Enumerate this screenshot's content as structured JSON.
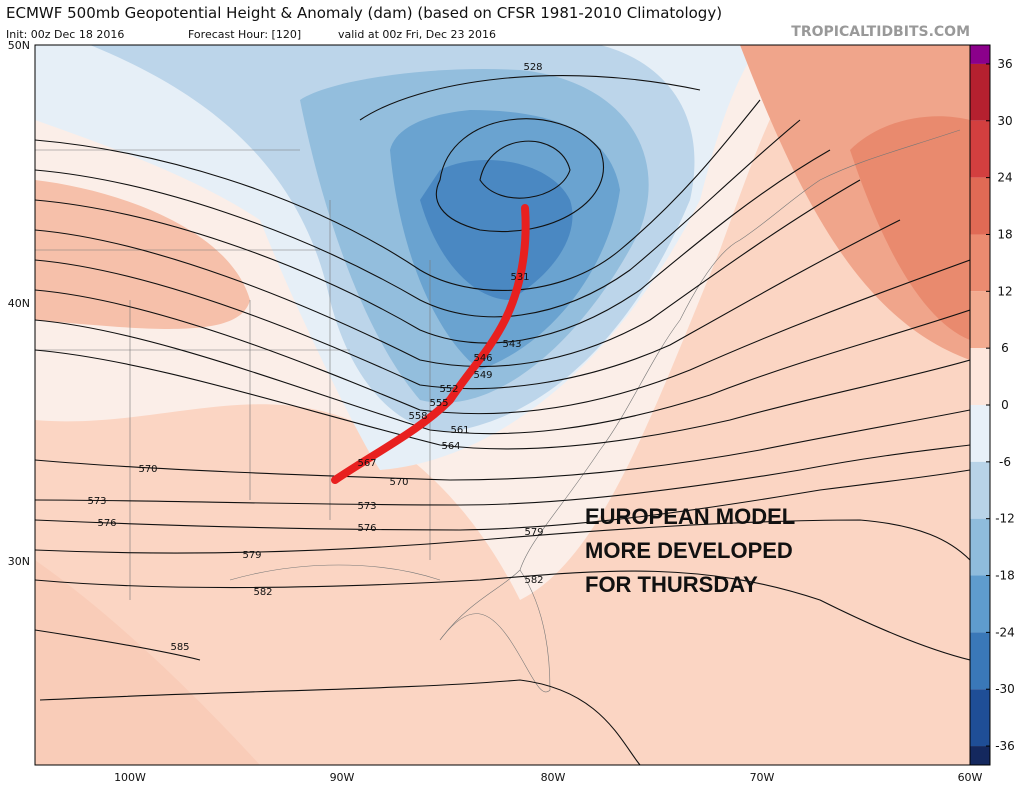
{
  "header": {
    "title": "ECMWF 500mb Geopotential Height & Anomaly (dam) (based on CFSR 1981-2010 Climatology)",
    "init": "Init: 00z Dec 18 2016",
    "forecast_hour": "Forecast Hour: [120]",
    "valid": "valid at 00z Fri, Dec 23 2016",
    "source": "TROPICALTIDBITS.COM"
  },
  "map": {
    "lat_labels": [
      "50N",
      "40N",
      "30N"
    ],
    "lon_labels": [
      "100W",
      "90W",
      "80W",
      "70W",
      "60W"
    ],
    "contour_labels": [
      528,
      531,
      543,
      546,
      549,
      552,
      555,
      558,
      561,
      564,
      567,
      570,
      570,
      573,
      573,
      576,
      576,
      579,
      579,
      582,
      582,
      585
    ],
    "annotation": [
      "EUROPEAN MODEL",
      "MORE DEVELOPED",
      "FOR THURSDAY"
    ]
  },
  "colorbar": {
    "lim": [
      -38,
      38
    ],
    "ticks": [
      36,
      30,
      24,
      18,
      12,
      6,
      0,
      -6,
      -12,
      -18,
      -24,
      -30,
      -36
    ],
    "colors": [
      "#8b008b",
      "#b5202f",
      "#d33f3f",
      "#e06a55",
      "#eb8b70",
      "#f3ab90",
      "#fde6dc",
      "#e8f0f8",
      "#b8d3e8",
      "#8fbcdc",
      "#5f9ccd",
      "#3a78b8",
      "#1f4e96",
      "#14285e"
    ]
  }
}
